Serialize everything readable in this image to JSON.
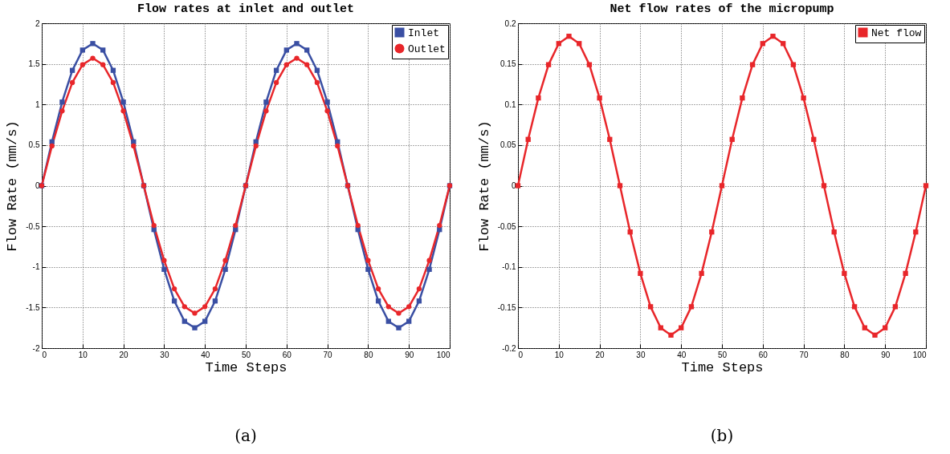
{
  "chart_data": [
    {
      "type": "line",
      "title": "Flow rates at inlet and outlet",
      "xlabel": "Time Steps",
      "ylabel": "Flow Rate (mm/s)",
      "annotations": [
        "(a)"
      ],
      "x": [
        0,
        2.5,
        5,
        7.5,
        10,
        12.5,
        15,
        17.5,
        20,
        22.5,
        25,
        27.5,
        30,
        32.5,
        35,
        37.5,
        40,
        42.5,
        45,
        47.5,
        50,
        52.5,
        55,
        57.5,
        60,
        62.5,
        65,
        67.5,
        70,
        72.5,
        75,
        77.5,
        80,
        82.5,
        85,
        87.5,
        90,
        92.5,
        95,
        97.5,
        100
      ],
      "series": [
        {
          "name": "Inlet",
          "color": "#3a4fa3",
          "marker": "square",
          "values": [
            0,
            0.54,
            1.03,
            1.42,
            1.67,
            1.75,
            1.67,
            1.42,
            1.03,
            0.54,
            0,
            -0.54,
            -1.03,
            -1.42,
            -1.67,
            -1.75,
            -1.67,
            -1.42,
            -1.03,
            -0.54,
            0,
            0.54,
            1.03,
            1.42,
            1.67,
            1.75,
            1.67,
            1.42,
            1.03,
            0.54,
            0,
            -0.54,
            -1.03,
            -1.42,
            -1.67,
            -1.75,
            -1.67,
            -1.42,
            -1.03,
            -0.54,
            0
          ]
        },
        {
          "name": "Outlet",
          "color": "#e8262a",
          "marker": "circle",
          "values": [
            0,
            0.49,
            0.92,
            1.27,
            1.49,
            1.57,
            1.49,
            1.27,
            0.92,
            0.49,
            0,
            -0.49,
            -0.92,
            -1.27,
            -1.49,
            -1.57,
            -1.49,
            -1.27,
            -0.92,
            -0.49,
            0,
            0.49,
            0.92,
            1.27,
            1.49,
            1.57,
            1.49,
            1.27,
            0.92,
            0.49,
            0,
            -0.49,
            -0.92,
            -1.27,
            -1.49,
            -1.57,
            -1.49,
            -1.27,
            -0.92,
            -0.49,
            0
          ]
        }
      ],
      "xlim": [
        0,
        100
      ],
      "xticks": [
        0,
        10,
        20,
        30,
        40,
        50,
        60,
        70,
        80,
        90,
        100
      ],
      "ylim": [
        -2,
        2
      ],
      "yticks": [
        -2,
        -1.5,
        -1,
        -0.5,
        0,
        0.5,
        1,
        1.5,
        2
      ],
      "grid": true,
      "legend": "top right",
      "line_style": "solid"
    },
    {
      "type": "line",
      "title": "Net flow rates of the micropump",
      "xlabel": "Time Steps",
      "ylabel": "Flow Rate (mm/s)",
      "annotations": [
        "(b)"
      ],
      "x": [
        0,
        2.5,
        5,
        7.5,
        10,
        12.5,
        15,
        17.5,
        20,
        22.5,
        25,
        27.5,
        30,
        32.5,
        35,
        37.5,
        40,
        42.5,
        45,
        47.5,
        50,
        52.5,
        55,
        57.5,
        60,
        62.5,
        65,
        67.5,
        70,
        72.5,
        75,
        77.5,
        80,
        82.5,
        85,
        87.5,
        90,
        92.5,
        95,
        97.5,
        100
      ],
      "series": [
        {
          "name": "Net flow",
          "color": "#e8262a",
          "marker": "square",
          "values": [
            0,
            0.057,
            0.108,
            0.149,
            0.175,
            0.184,
            0.175,
            0.149,
            0.108,
            0.057,
            0,
            -0.057,
            -0.108,
            -0.149,
            -0.175,
            -0.184,
            -0.175,
            -0.149,
            -0.108,
            -0.057,
            0,
            0.057,
            0.108,
            0.149,
            0.175,
            0.184,
            0.175,
            0.149,
            0.108,
            0.057,
            0,
            -0.057,
            -0.108,
            -0.149,
            -0.175,
            -0.184,
            -0.175,
            -0.149,
            -0.108,
            -0.057,
            0
          ]
        }
      ],
      "xlim": [
        0,
        100
      ],
      "xticks": [
        0,
        10,
        20,
        30,
        40,
        50,
        60,
        70,
        80,
        90,
        100
      ],
      "ylim": [
        -0.2,
        0.2
      ],
      "yticks": [
        -0.2,
        -0.15,
        -0.1,
        -0.05,
        0,
        0.05,
        0.1,
        0.15,
        0.2
      ],
      "grid": true,
      "legend": "top right",
      "line_style": "solid"
    }
  ]
}
